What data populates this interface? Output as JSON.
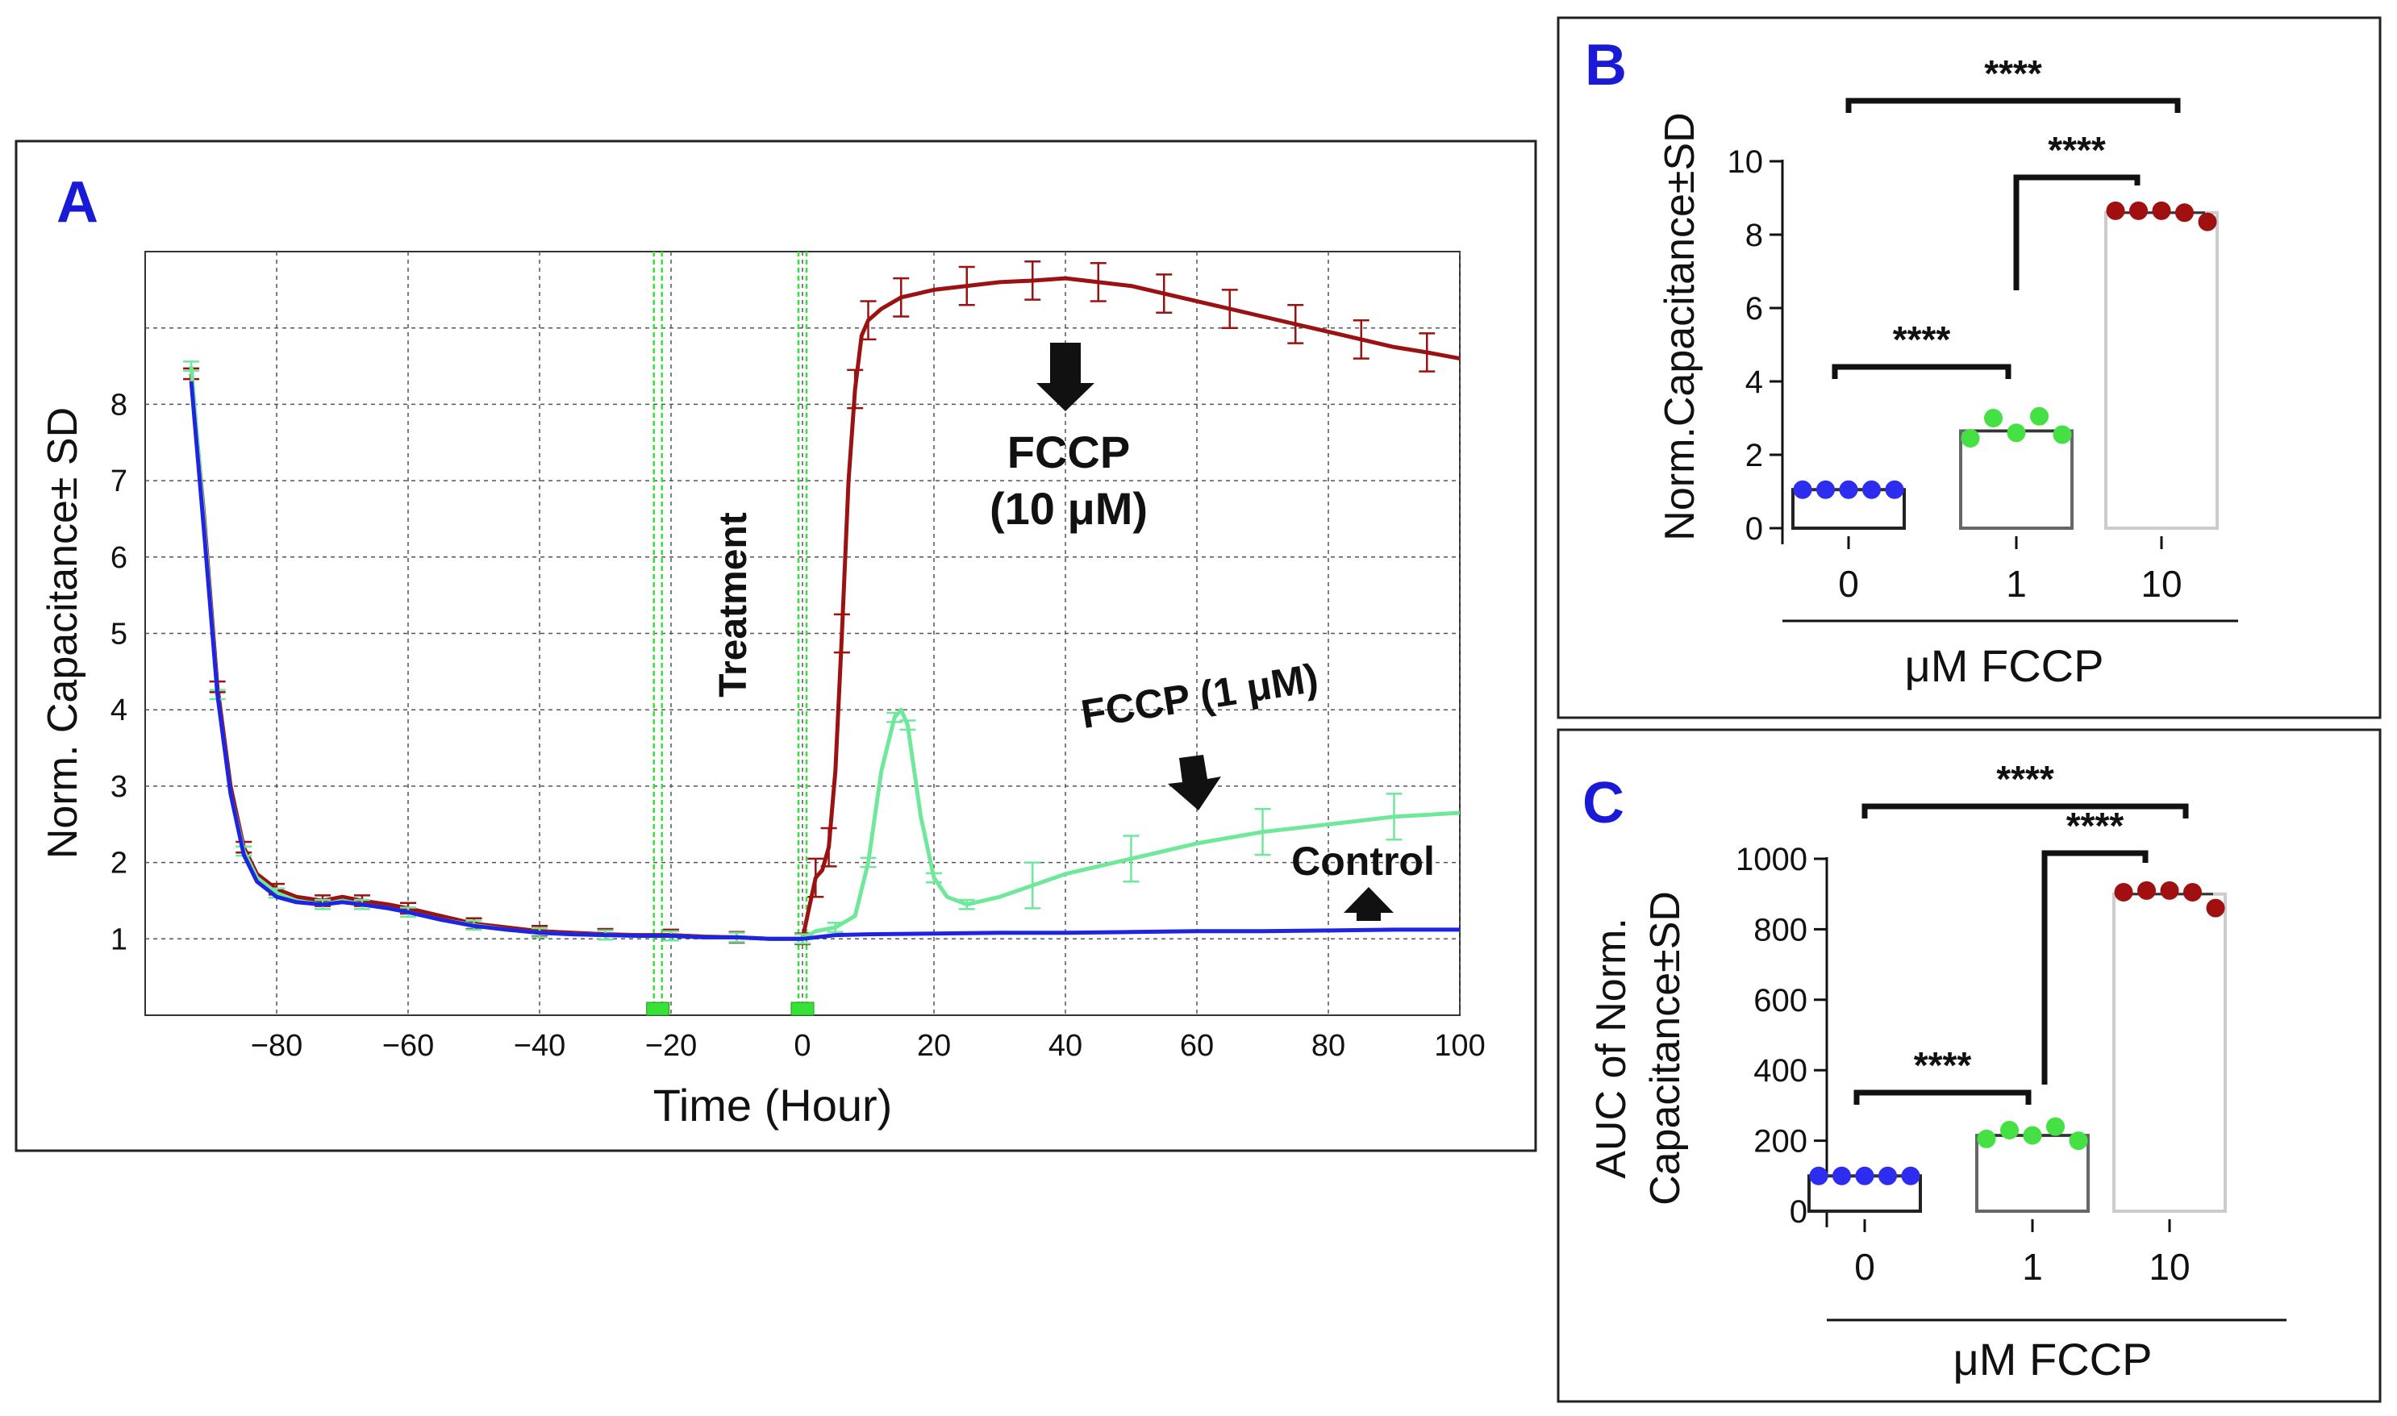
{
  "colors": {
    "control": "#1f24e0",
    "fccp1": "#6fe89b",
    "fccp10": "#9b1212",
    "panel_label": "#1a1ad6",
    "dot_blue": "#2d2df0",
    "dot_green": "#44e044",
    "dot_red": "#a01010"
  },
  "chart_data": [
    {
      "panel": "A",
      "type": "line",
      "xlabel": "Time (Hour)",
      "ylabel": "Norm. Capacitance± SD",
      "xlim": [
        -100,
        100
      ],
      "ylim": [
        0,
        10
      ],
      "xticks": [
        -80,
        -60,
        -40,
        -20,
        0,
        20,
        40,
        60,
        80,
        100
      ],
      "yticks": [
        1,
        2,
        3,
        4,
        5,
        6,
        7,
        8
      ],
      "grid": true,
      "treatment_markers_x": [
        -22,
        0
      ],
      "annotations": {
        "treatment": "Treatment",
        "fccp10_line1": "FCCP",
        "fccp10_line2": "(10 μM)",
        "fccp1": "FCCP (1 μM)",
        "control": "Control"
      },
      "series": [
        {
          "name": "FCCP (10 μM)",
          "color": "#9b1212",
          "x": [
            -93,
            -91,
            -89,
            -87,
            -85,
            -83,
            -80,
            -77,
            -73,
            -70,
            -67,
            -63,
            -60,
            -55,
            -50,
            -45,
            -40,
            -35,
            -30,
            -25,
            -20,
            -15,
            -10,
            -5,
            0,
            1,
            2,
            3,
            4,
            5,
            6,
            7,
            8,
            9,
            10,
            12,
            15,
            20,
            25,
            30,
            35,
            40,
            45,
            50,
            55,
            60,
            65,
            70,
            75,
            80,
            85,
            90,
            95,
            100
          ],
          "y": [
            8.4,
            6.5,
            4.3,
            3.0,
            2.2,
            1.85,
            1.65,
            1.55,
            1.5,
            1.55,
            1.5,
            1.45,
            1.4,
            1.3,
            1.2,
            1.15,
            1.1,
            1.08,
            1.06,
            1.05,
            1.05,
            1.03,
            1.02,
            1.0,
            1.0,
            1.4,
            1.8,
            1.9,
            2.2,
            3.2,
            5.0,
            7.0,
            8.2,
            8.9,
            9.1,
            9.25,
            9.4,
            9.5,
            9.55,
            9.6,
            9.62,
            9.65,
            9.6,
            9.55,
            9.45,
            9.35,
            9.25,
            9.15,
            9.05,
            8.95,
            8.85,
            8.75,
            8.68,
            8.6
          ]
        },
        {
          "name": "FCCP (1 μM)",
          "color": "#6fe89b",
          "x": [
            -93,
            -91,
            -89,
            -87,
            -85,
            -83,
            -80,
            -77,
            -73,
            -70,
            -67,
            -63,
            -60,
            -55,
            -50,
            -45,
            -40,
            -35,
            -30,
            -25,
            -20,
            -15,
            -10,
            -5,
            0,
            2,
            5,
            8,
            10,
            12,
            14,
            15,
            16,
            18,
            20,
            22,
            25,
            30,
            35,
            40,
            50,
            60,
            70,
            80,
            90,
            100
          ],
          "y": [
            8.5,
            6.4,
            4.2,
            2.9,
            2.15,
            1.8,
            1.6,
            1.5,
            1.45,
            1.5,
            1.45,
            1.4,
            1.35,
            1.25,
            1.18,
            1.12,
            1.08,
            1.06,
            1.05,
            1.04,
            1.04,
            1.02,
            1.02,
            1.0,
            1.0,
            1.1,
            1.15,
            1.3,
            2.0,
            3.2,
            3.9,
            4.0,
            3.8,
            2.6,
            1.8,
            1.55,
            1.45,
            1.55,
            1.7,
            1.85,
            2.05,
            2.25,
            2.4,
            2.5,
            2.6,
            2.65
          ]
        },
        {
          "name": "Control",
          "color": "#1f24e0",
          "x": [
            -93,
            -91,
            -89,
            -87,
            -85,
            -83,
            -80,
            -77,
            -73,
            -70,
            -67,
            -63,
            -60,
            -55,
            -50,
            -45,
            -40,
            -35,
            -30,
            -25,
            -20,
            -15,
            -10,
            -5,
            0,
            5,
            10,
            20,
            30,
            40,
            50,
            60,
            70,
            80,
            90,
            100
          ],
          "y": [
            8.3,
            6.3,
            4.2,
            2.9,
            2.1,
            1.75,
            1.55,
            1.48,
            1.45,
            1.48,
            1.45,
            1.4,
            1.35,
            1.25,
            1.17,
            1.12,
            1.08,
            1.06,
            1.05,
            1.04,
            1.04,
            1.02,
            1.02,
            1.0,
            1.0,
            1.05,
            1.06,
            1.07,
            1.08,
            1.08,
            1.09,
            1.1,
            1.1,
            1.11,
            1.12,
            1.12
          ]
        }
      ]
    },
    {
      "panel": "B",
      "type": "bar",
      "categories": [
        "0",
        "1",
        "10"
      ],
      "values": [
        1.05,
        2.65,
        8.6
      ],
      "points": [
        [
          1.05,
          1.05,
          1.05,
          1.05,
          1.05
        ],
        [
          2.45,
          3.0,
          2.6,
          3.05,
          2.55
        ],
        [
          8.65,
          8.65,
          8.65,
          8.6,
          8.35
        ]
      ],
      "xlabel": "μM FCCP",
      "ylabel": "Norm.Capacitance±SD",
      "ylim": [
        0,
        10
      ],
      "yticks": [
        0,
        2,
        4,
        6,
        8,
        10
      ],
      "significance": [
        "****",
        "****",
        "****"
      ]
    },
    {
      "panel": "C",
      "type": "bar",
      "categories": [
        "0",
        "1",
        "10"
      ],
      "values": [
        100,
        215,
        900
      ],
      "points": [
        [
          100,
          100,
          100,
          100,
          100
        ],
        [
          205,
          230,
          215,
          240,
          200
        ],
        [
          905,
          910,
          910,
          905,
          860
        ]
      ],
      "xlabel": "μM FCCP",
      "ylabel_line1": "AUC of Norm.",
      "ylabel_line2": "Capacitance±SD",
      "ylim": [
        0,
        1000
      ],
      "yticks": [
        0,
        200,
        400,
        600,
        800,
        1000
      ],
      "significance": [
        "****",
        "****",
        "****"
      ]
    }
  ]
}
